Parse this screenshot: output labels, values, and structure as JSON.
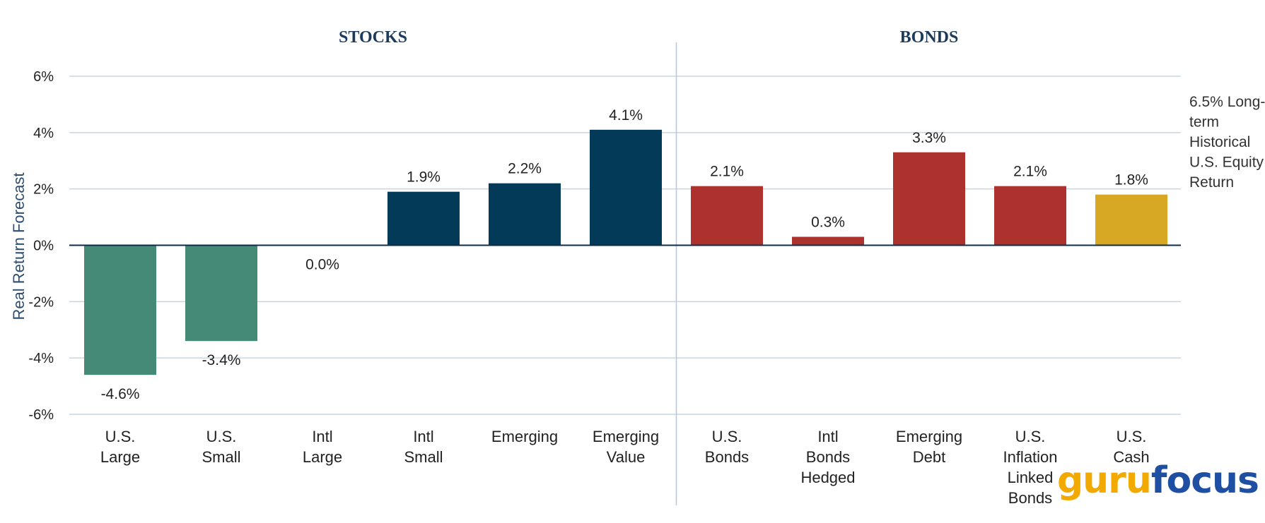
{
  "chart_data": {
    "type": "bar",
    "ylabel": "Real Return Forecast",
    "ylim": [
      -6,
      6
    ],
    "yticks": [
      6,
      4,
      2,
      0,
      -2,
      -4,
      -6
    ],
    "ytick_labels": [
      "6%",
      "4%",
      "2%",
      "0%",
      "-2%",
      "-4%",
      "-6%"
    ],
    "grid": true,
    "groups": [
      {
        "name": "STOCKS",
        "start": 0,
        "end": 5
      },
      {
        "name": "BONDS",
        "start": 6,
        "end": 10
      }
    ],
    "categories": [
      [
        "U.S.",
        "Large"
      ],
      [
        "U.S.",
        "Small"
      ],
      [
        "Intl",
        "Large"
      ],
      [
        "Intl",
        "Small"
      ],
      [
        "Emerging"
      ],
      [
        "Emerging",
        "Value"
      ],
      [
        "U.S.",
        "Bonds"
      ],
      [
        "Intl",
        "Bonds",
        "Hedged"
      ],
      [
        "Emerging",
        "Debt"
      ],
      [
        "U.S.",
        "Inflation",
        "Linked",
        "Bonds"
      ],
      [
        "U.S.",
        "Cash"
      ]
    ],
    "values": [
      -4.6,
      -3.4,
      0.0,
      1.9,
      2.2,
      4.1,
      2.1,
      0.3,
      3.3,
      2.1,
      1.8
    ],
    "labels": [
      "-4.6%",
      "-3.4%",
      "0.0%",
      "1.9%",
      "2.2%",
      "4.1%",
      "2.1%",
      "0.3%",
      "3.3%",
      "2.1%",
      "1.8%"
    ],
    "colors": [
      "#458a76",
      "#458a76",
      "#458a76",
      "#033a58",
      "#033a58",
      "#033a58",
      "#ad322d",
      "#ad322d",
      "#ad322d",
      "#ad322d",
      "#d6a823"
    ],
    "annotation": [
      "6.5% Long-",
      "term",
      "Historical",
      "U.S. Equity",
      "Return"
    ]
  },
  "logo": {
    "part1": "guru",
    "part2": "focus",
    "color1": "#f2a900",
    "color2": "#1f4fa3"
  },
  "colors": {
    "grid": "#c5d6e3",
    "zero_line": "#0c2d4a",
    "divider": "#b8c7d3"
  }
}
